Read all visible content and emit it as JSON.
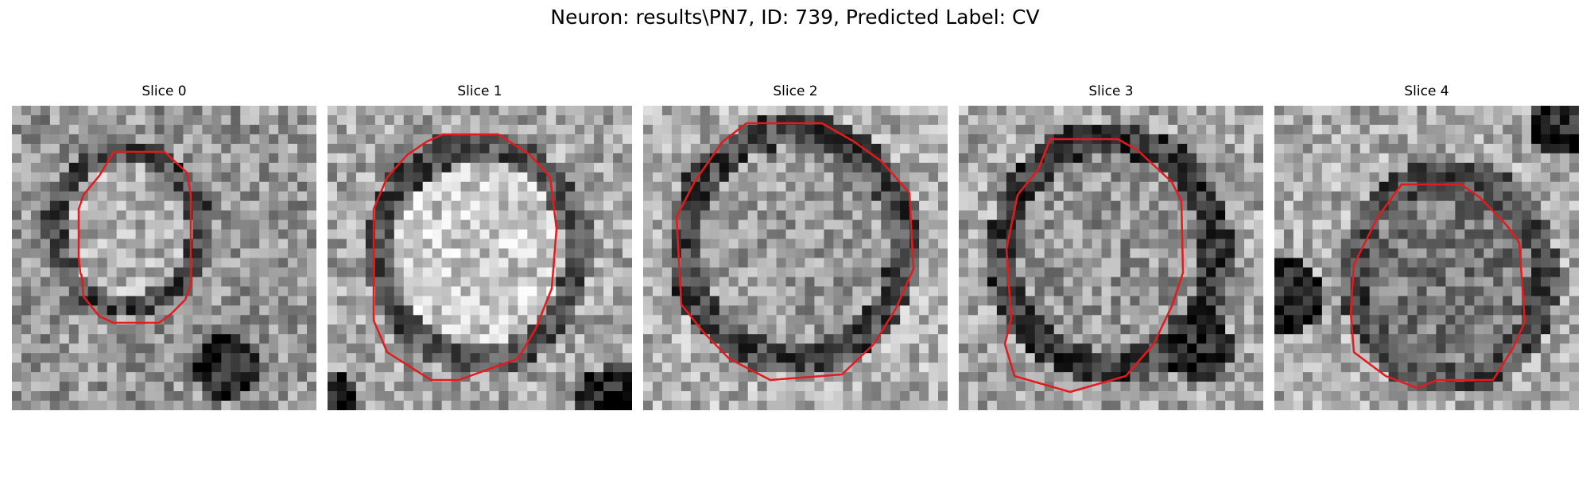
{
  "figure": {
    "title": "Neuron: results\\PN7, ID: 739, Predicted Label: CV"
  },
  "panels": [
    {
      "title": "Slice 0"
    },
    {
      "title": "Slice 1"
    },
    {
      "title": "Slice 2"
    },
    {
      "title": "Slice 3"
    },
    {
      "title": "Slice 4"
    }
  ],
  "colors": {
    "contour": "#e41a1c",
    "background": "#ffffff"
  }
}
